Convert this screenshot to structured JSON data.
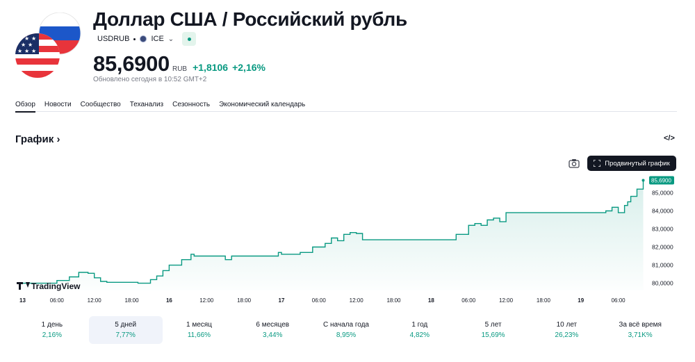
{
  "header": {
    "title": "Доллар США / Российский рубль",
    "symbol": "USDRUB",
    "exchange": "ICE",
    "price": "85,6900",
    "currency": "RUB",
    "change_abs": "+1,8106",
    "change_pct": "+2,16%",
    "updated": "Обновлено сегодня в 10:52 GMT+2"
  },
  "tabs": [
    {
      "label": "Обзор",
      "active": true
    },
    {
      "label": "Новости"
    },
    {
      "label": "Сообщество"
    },
    {
      "label": "Теханализ"
    },
    {
      "label": "Сезонность"
    },
    {
      "label": "Экономический календарь"
    }
  ],
  "section": {
    "title": "График",
    "chevron": "›",
    "embed_label": "</>",
    "advanced_button": "Продвинутый график"
  },
  "colors": {
    "accent": "#089981",
    "dark": "#131722",
    "muted": "#787b86"
  },
  "icons": [
    "flag-us-ru-icon",
    "exchange-icon",
    "chevron-down-icon",
    "camera-icon",
    "expand-icon",
    "embed-code-icon",
    "tradingview-logo-icon"
  ],
  "chart_data": {
    "type": "area",
    "watermark": "TradingView",
    "last_value_label": "85,6900",
    "y_ticks": [
      "85,0000",
      "84,0000",
      "83,0000",
      "82,0000",
      "81,0000",
      "80,0000"
    ],
    "y_tick_values": [
      85,
      84,
      83,
      82,
      81,
      80
    ],
    "x_ticks": [
      {
        "label": "13",
        "bold": true,
        "t": 0
      },
      {
        "label": "06:00",
        "t": 6
      },
      {
        "label": "12:00",
        "t": 12
      },
      {
        "label": "18:00",
        "t": 18
      },
      {
        "label": "16",
        "bold": true,
        "t": 24
      },
      {
        "label": "12:00",
        "t": 30
      },
      {
        "label": "18:00",
        "t": 36
      },
      {
        "label": "17",
        "bold": true,
        "t": 42
      },
      {
        "label": "06:00",
        "t": 48
      },
      {
        "label": "12:00",
        "t": 54
      },
      {
        "label": "18:00",
        "t": 60
      },
      {
        "label": "18",
        "bold": true,
        "t": 66
      },
      {
        "label": "06:00",
        "t": 72
      },
      {
        "label": "12:00",
        "t": 78
      },
      {
        "label": "18:00",
        "t": 84
      },
      {
        "label": "19",
        "bold": true,
        "t": 90
      },
      {
        "label": "06:00",
        "t": 96
      }
    ],
    "ylim": [
      79.6,
      85.9
    ],
    "xlim": [
      0,
      100.5
    ],
    "series": [
      {
        "x": [
          0,
          4,
          6,
          8,
          9.5,
          11,
          12,
          13,
          14,
          15,
          16,
          17,
          18,
          19,
          21,
          22,
          23,
          24,
          26,
          27.5,
          28,
          29,
          30,
          31,
          32,
          33,
          34,
          36,
          38,
          40,
          41.5,
          42,
          43,
          44,
          45,
          47,
          49,
          50,
          51,
          52,
          53,
          54,
          55,
          56,
          58,
          60,
          62,
          64,
          66,
          68,
          70,
          72,
          73,
          74,
          75,
          76,
          77,
          78,
          80,
          82,
          84,
          86,
          88,
          90,
          92,
          94,
          95,
          96,
          97,
          97.5,
          98,
          99,
          100
        ],
        "y": [
          80.0,
          80.0,
          80.15,
          80.35,
          80.6,
          80.55,
          80.3,
          80.1,
          80.05,
          80.05,
          80.05,
          80.05,
          80.05,
          80.0,
          80.2,
          80.4,
          80.7,
          81.0,
          81.3,
          81.6,
          81.5,
          81.5,
          81.5,
          81.5,
          81.5,
          81.3,
          81.5,
          81.5,
          81.5,
          81.5,
          81.7,
          81.6,
          81.6,
          81.6,
          81.7,
          82.0,
          82.2,
          82.5,
          82.35,
          82.7,
          82.8,
          82.75,
          82.4,
          82.4,
          82.4,
          82.4,
          82.4,
          82.4,
          82.4,
          82.4,
          82.7,
          83.2,
          83.3,
          83.2,
          83.5,
          83.6,
          83.4,
          83.9,
          83.9,
          83.9,
          83.9,
          83.9,
          83.9,
          83.9,
          83.9,
          84.0,
          84.2,
          83.9,
          84.3,
          84.5,
          84.8,
          85.2,
          85.69
        ]
      }
    ]
  },
  "periods": [
    {
      "label": "1 день",
      "value": "2,16%"
    },
    {
      "label": "5 дней",
      "value": "7,77%",
      "active": true
    },
    {
      "label": "1 месяц",
      "value": "11,66%"
    },
    {
      "label": "6 месяцев",
      "value": "3,44%"
    },
    {
      "label": "С начала года",
      "value": "8,95%"
    },
    {
      "label": "1 год",
      "value": "4,82%"
    },
    {
      "label": "5 лет",
      "value": "15,69%"
    },
    {
      "label": "10 лет",
      "value": "26,23%"
    },
    {
      "label": "За всё время",
      "value": "3,71K%"
    }
  ]
}
